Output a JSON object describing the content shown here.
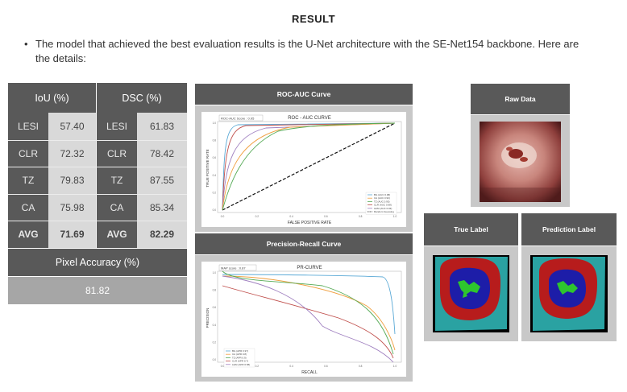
{
  "title": "RESULT",
  "bullet": "The model that achieved the best evaluation results is the U-Net architecture with the SE-Net154 backbone. Here are the details:",
  "table": {
    "header_iou": "IoU (%)",
    "header_dsc": "DSC (%)",
    "rows": [
      {
        "c1": "LESI",
        "v1": "57.40",
        "c2": "LESI",
        "v2": "61.83"
      },
      {
        "c1": "CLR",
        "v1": "72.32",
        "c2": "CLR",
        "v2": "78.42"
      },
      {
        "c1": "TZ",
        "v1": "79.83",
        "c2": "TZ",
        "v2": "87.55"
      },
      {
        "c1": "CA",
        "v1": "75.98",
        "c2": "CA",
        "v2": "85.34"
      },
      {
        "c1": "AVG",
        "v1": "71.69",
        "c2": "AVG",
        "v2": "82.29"
      }
    ],
    "pixel_accuracy_label": "Pixel Accuracy (%)",
    "pixel_accuracy_value": "81.82"
  },
  "roc": {
    "panel_title": "ROC-AUC Curve",
    "score": "ROC-AUC Score : 0.95",
    "title": "ROC - AUC CURVE",
    "xlabel": "FALSE POSITIVE RATE",
    "ylabel": "TRUE POSITIVE RATE",
    "legend": [
      "BG (AUC 0.98)",
      "CA (AUC 0.93)",
      "TZ (AUC 0.95)",
      "CLR (AUC 0.98)",
      "LESI (AUC 0.93)",
      "Random Guessing"
    ]
  },
  "pr": {
    "panel_title": "Precision-Recall Curve",
    "score": "MAP score : 0.87",
    "title": "PR-CURVE",
    "xlabel": "RECALL",
    "ylabel": "PRECISION",
    "legend": [
      "BG (APR 0.97)",
      "CA (APR 0.8)",
      "TZ (APR 0.9)",
      "CLR (APR 0.7)",
      "LESI (APR 0.58)"
    ]
  },
  "images": {
    "raw_title": "Raw Data",
    "true_title": "True Label",
    "pred_title": "Prediction Label"
  },
  "colors": {
    "panel_dark": "#595959",
    "bg": "#5aa9d6",
    "ca": "#f0a040",
    "tz": "#55aa55",
    "clr": "#c0504d",
    "lesi": "#a080c0"
  }
}
